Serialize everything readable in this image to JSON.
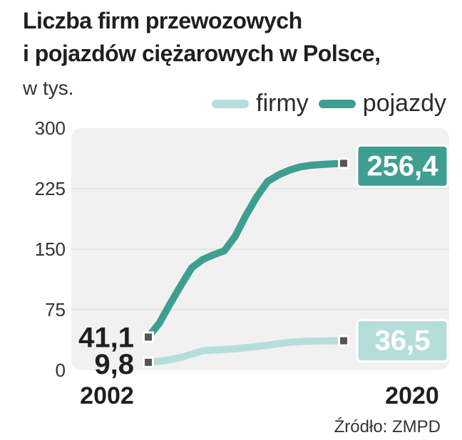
{
  "title": [
    "Liczba firm przewozowych",
    "i pojazdów ciężarowych w Polsce,"
  ],
  "unit": "w tys.",
  "legend": [
    {
      "label": "firmy",
      "color": "#b5dedb"
    },
    {
      "label": "pojazdy",
      "color": "#3f9e92"
    }
  ],
  "source": "Źródło: ZMPD",
  "colors": {
    "plot_background": "#f1f1f1",
    "grid": "#dddddd",
    "marker": "#555555"
  },
  "chart_data": {
    "type": "line",
    "title": "Liczba firm przewozowych i pojazdów ciężarowych w Polsce, w tys.",
    "xlabel": "",
    "ylabel": "",
    "x_range": [
      2002,
      2020
    ],
    "x_tick_labels": [
      "2002",
      "2020"
    ],
    "ylim": [
      0,
      300
    ],
    "yticks": [
      0,
      75,
      150,
      225,
      300
    ],
    "grid": true,
    "legend_position": "top-right",
    "series": [
      {
        "name": "firmy",
        "color": "#b5dedb",
        "x": [
          2002,
          2003,
          2004,
          2005,
          2006,
          2007,
          2008,
          2009,
          2010,
          2011,
          2012,
          2013,
          2014,
          2015,
          2016,
          2017,
          2018,
          2019,
          2020
        ],
        "y": [
          9.8,
          11,
          13,
          16,
          20,
          24,
          25,
          25.8,
          26.6,
          28,
          29.5,
          31,
          33,
          34.5,
          35.5,
          36,
          36.2,
          36.4,
          36.5
        ],
        "start_label": "9,8",
        "end_label": "36,5"
      },
      {
        "name": "pojazdy",
        "color": "#3f9e92",
        "x": [
          2002,
          2003,
          2004,
          2005,
          2006,
          2007,
          2008,
          2009,
          2010,
          2011,
          2012,
          2013,
          2014,
          2015,
          2016,
          2017,
          2018,
          2019,
          2020
        ],
        "y": [
          41.1,
          58,
          82,
          105,
          127,
          137,
          143,
          148,
          166,
          192,
          215,
          234,
          242,
          248,
          252,
          254,
          255,
          255.8,
          256.4
        ],
        "start_label": "41,1",
        "end_label": "256,4"
      }
    ]
  }
}
